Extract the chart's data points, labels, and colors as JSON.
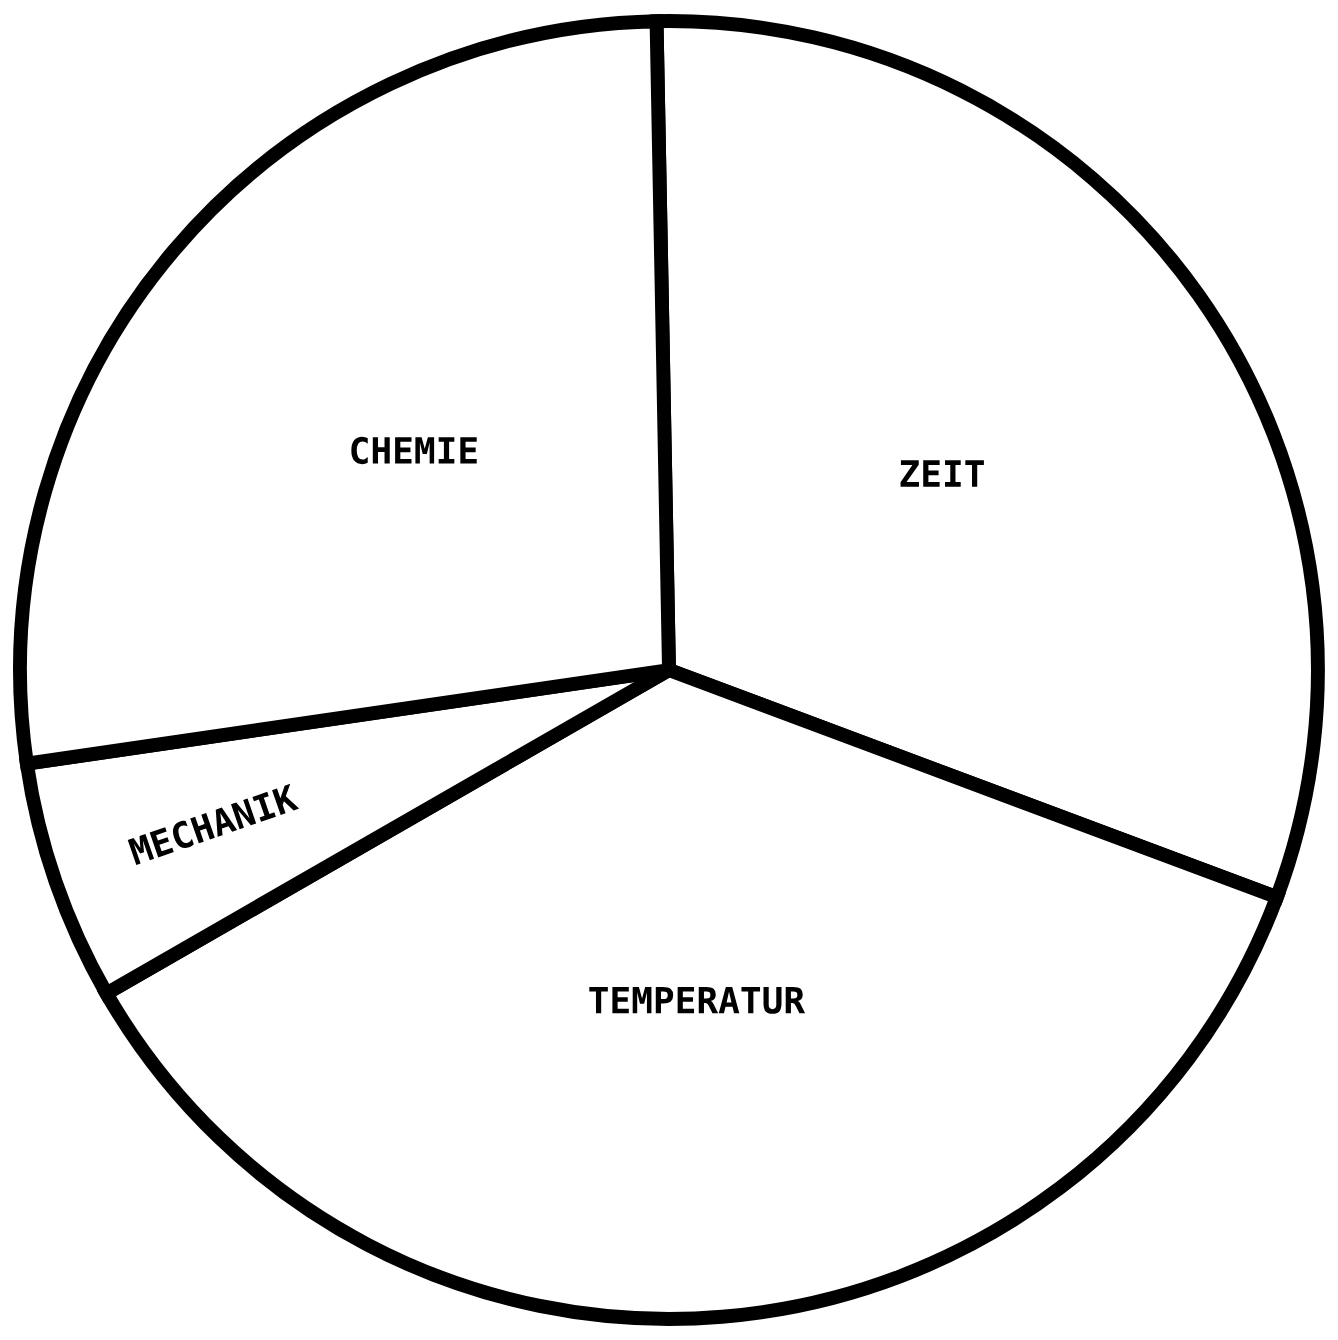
{
  "chart_data": {
    "type": "pie",
    "categories": [
      "ZEIT",
      "TEMPERATUR",
      "MECHANIK",
      "CHEMIE"
    ],
    "values": [
      31,
      36,
      6,
      27
    ],
    "colors": [
      "#ffffff",
      "#ffffff",
      "#ffffff",
      "#ffffff"
    ]
  }
}
